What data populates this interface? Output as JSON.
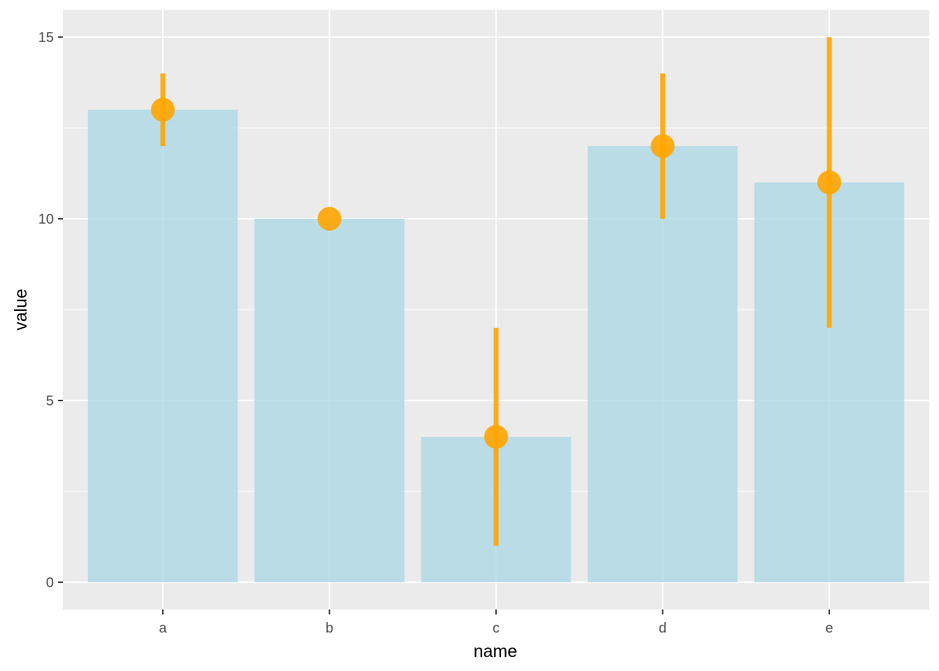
{
  "chart_data": {
    "type": "bar",
    "categories": [
      "a",
      "b",
      "c",
      "d",
      "e"
    ],
    "values": [
      13,
      10,
      4,
      12,
      11
    ],
    "error_bars": [
      {
        "low": 12,
        "high": 14
      },
      {
        "low": 10,
        "high": 10
      },
      {
        "low": 1,
        "high": 7
      },
      {
        "low": 10,
        "high": 14
      },
      {
        "low": 7,
        "high": 15
      }
    ],
    "xlabel": "name",
    "ylabel": "value",
    "ylim": [
      -0.75,
      15.75
    ],
    "yticks": [
      0,
      5,
      10,
      15
    ],
    "grid": true,
    "legend": "none",
    "colors": {
      "panel": "#ebebeb",
      "grid": "#ffffff",
      "bar": "#add8e6",
      "point": "#ffa500",
      "errorbar": "#ffa500"
    }
  }
}
